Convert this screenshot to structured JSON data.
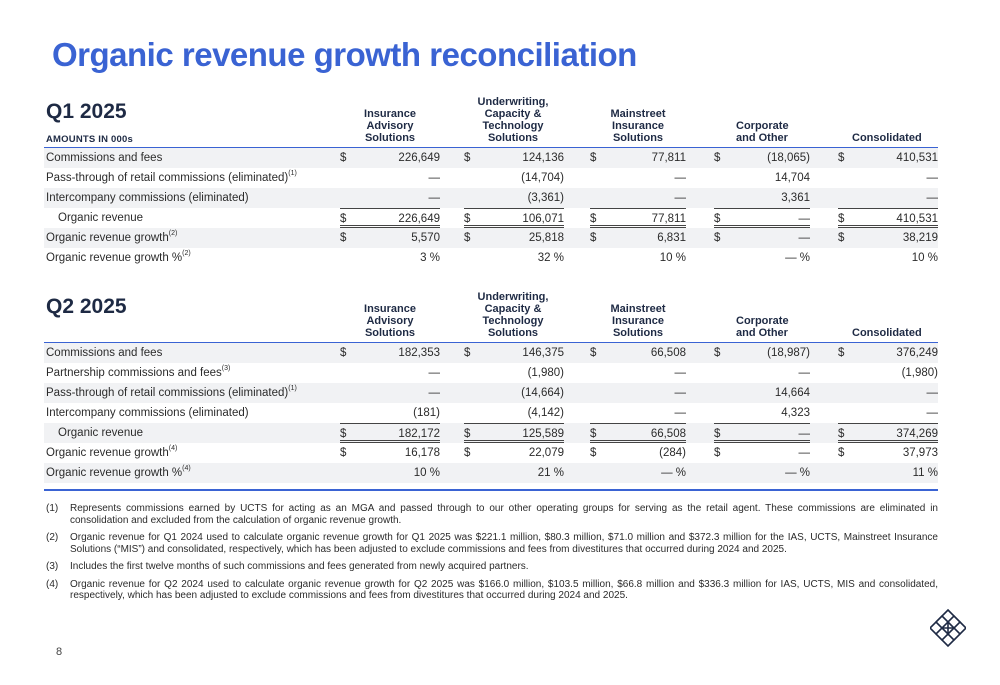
{
  "page": {
    "title": "Organic revenue growth reconciliation",
    "page_number": "8"
  },
  "columns": {
    "ias": [
      "Insurance",
      "Advisory",
      "Solutions"
    ],
    "ucts": [
      "Underwriting,",
      "Capacity &",
      "Technology",
      "Solutions"
    ],
    "mis": [
      "Mainstreet",
      "Insurance",
      "Solutions"
    ],
    "corp": [
      "Corporate",
      "and Other"
    ],
    "cons": [
      "Consolidated"
    ]
  },
  "q1": {
    "title": "Q1 2025",
    "amounts_label": "AMOUNTS IN 000s",
    "rows": [
      {
        "label": "Commissions and fees",
        "sup": "",
        "values": [
          "226,649",
          "124,136",
          "77,811",
          "(18,065)",
          "410,531"
        ],
        "dollars": true
      },
      {
        "label": "Pass-through of retail commissions (eliminated)",
        "sup": "(1)",
        "values": [
          "—",
          "(14,704)",
          "—",
          "14,704",
          "—"
        ],
        "dollars": false
      },
      {
        "label": "Intercompany commissions (eliminated)",
        "sup": "",
        "values": [
          "—",
          "(3,361)",
          "—",
          "3,361",
          "—"
        ],
        "dollars": false
      },
      {
        "label": "Organic revenue",
        "sup": "",
        "values": [
          "226,649",
          "106,071",
          "77,811",
          "—",
          "410,531"
        ],
        "dollars": true
      },
      {
        "label": "Organic revenue growth",
        "sup": "(2)",
        "values": [
          "5,570",
          "25,818",
          "6,831",
          "—",
          "38,219"
        ],
        "dollars": true
      },
      {
        "label": "Organic revenue growth %",
        "sup": "(2)",
        "values": [
          "3 %",
          "32 %",
          "10 %",
          "— %",
          "10 %"
        ],
        "dollars": false
      }
    ]
  },
  "q2": {
    "title": "Q2 2025",
    "rows": [
      {
        "label": "Commissions and fees",
        "sup": "",
        "values": [
          "182,353",
          "146,375",
          "66,508",
          "(18,987)",
          "376,249"
        ],
        "dollars": true
      },
      {
        "label": "Partnership commissions and fees",
        "sup": "(3)",
        "values": [
          "—",
          "(1,980)",
          "—",
          "—",
          "(1,980)"
        ],
        "dollars": false
      },
      {
        "label": "Pass-through of retail commissions (eliminated)",
        "sup": "(1)",
        "values": [
          "—",
          "(14,664)",
          "—",
          "14,664",
          "—"
        ],
        "dollars": false
      },
      {
        "label": "Intercompany commissions (eliminated)",
        "sup": "",
        "values": [
          "(181)",
          "(4,142)",
          "—",
          "4,323",
          "—"
        ],
        "dollars": false
      },
      {
        "label": "Organic revenue",
        "sup": "",
        "values": [
          "182,172",
          "125,589",
          "66,508",
          "—",
          "374,269"
        ],
        "dollars": true
      },
      {
        "label": "Organic revenue growth",
        "sup": "(4)",
        "values": [
          "16,178",
          "22,079",
          "(284)",
          "—",
          "37,973"
        ],
        "dollars": true
      },
      {
        "label": "Organic revenue growth %",
        "sup": "(4)",
        "values": [
          "10 %",
          "21 %",
          "— %",
          "— %",
          "11 %"
        ],
        "dollars": false
      }
    ]
  },
  "currency_symbol": "$",
  "footnotes": [
    {
      "key": "(1)",
      "text": "Represents commissions earned by UCTS for acting as an MGA and passed through to our other operating groups for serving as the retail agent. These commissions are eliminated in consolidation and excluded from the calculation of organic revenue growth."
    },
    {
      "key": "(2)",
      "text": "Organic revenue for Q1 2024 used to calculate organic revenue growth for Q1 2025 was $221.1 million, $80.3 million, $71.0 million and $372.3 million for the IAS, UCTS, Mainstreet Insurance Solutions (“MIS”) and consolidated, respectively, which has been adjusted to exclude commissions and fees from divestitures that occurred during 2024 and 2025."
    },
    {
      "key": "(3)",
      "text": "Includes the first twelve months of such commissions and fees generated from newly acquired partners."
    },
    {
      "key": "(4)",
      "text": "Organic revenue for Q2 2024 used to calculate organic revenue growth for Q2 2025 was $166.0 million, $103.5 million, $66.8 million and $336.3 million for IAS, UCTS, MIS and consolidated, respectively, which has been adjusted to exclude commissions and fees from divestitures that occurred during 2024 and 2025."
    }
  ],
  "colors": {
    "accent": "#3a63d3",
    "heading": "#1e2a44",
    "row_shade": "#f1f2f4"
  },
  "icons": {
    "logo": "company-logo-icon"
  }
}
